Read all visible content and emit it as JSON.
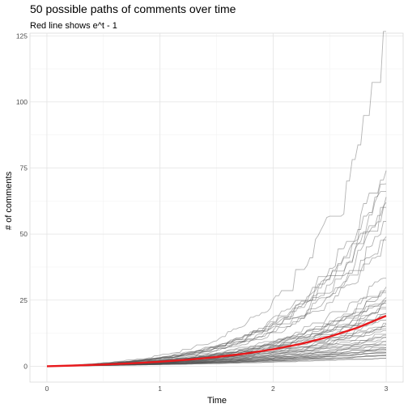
{
  "chart_data": {
    "type": "line",
    "title": "50 possible paths of comments over time",
    "subtitle": "Red line shows e^t - 1",
    "xlabel": "Time",
    "ylabel": "# of comments",
    "xlim": [
      -0.15,
      3.15
    ],
    "ylim": [
      -6,
      126
    ],
    "x_ticks": [
      0,
      1,
      2,
      3
    ],
    "x_tick_labels": [
      "0",
      "1",
      "2",
      "3"
    ],
    "y_ticks": [
      0,
      25,
      50,
      75,
      100,
      125
    ],
    "y_tick_labels": [
      "0",
      "25",
      "50",
      "75",
      "100",
      "125"
    ],
    "grid": true,
    "background": "#ffffff",
    "path_color": "#4d4d4d",
    "curve_color": "#e8191c",
    "path_count": 50,
    "path_finals": [
      120,
      74,
      69,
      66,
      64,
      62,
      58,
      52,
      49,
      45,
      33,
      30,
      28,
      27,
      26,
      25,
      24,
      23,
      22,
      21,
      20,
      19,
      18,
      17,
      16,
      15,
      14,
      14,
      13,
      12,
      11,
      11,
      10,
      9,
      9,
      8,
      8,
      7,
      7,
      6,
      6,
      6,
      5,
      5,
      5,
      4,
      4,
      4,
      3,
      3
    ],
    "reference_curve": {
      "name": "e^t - 1",
      "x": [
        0,
        0.25,
        0.5,
        0.75,
        1,
        1.25,
        1.5,
        1.75,
        2,
        2.25,
        2.5,
        2.75,
        3
      ],
      "y": [
        0,
        0.28,
        0.65,
        1.12,
        1.72,
        2.49,
        3.48,
        4.75,
        6.39,
        8.49,
        11.18,
        14.64,
        19.09
      ]
    }
  }
}
